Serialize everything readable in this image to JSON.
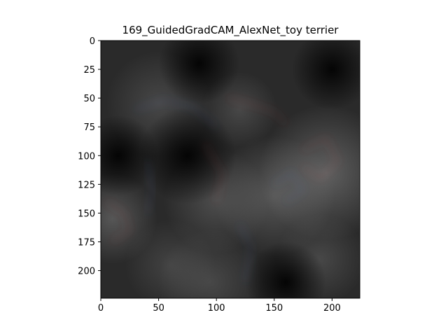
{
  "chart_data": {
    "type": "heatmap",
    "title": "169_GuidedGradCAM_AlexNet_toy terrier",
    "xlabel": "",
    "ylabel": "",
    "xlim": [
      0,
      224
    ],
    "ylim": [
      224,
      0
    ],
    "x_ticks": [
      0,
      50,
      100,
      150,
      200
    ],
    "y_ticks": [
      0,
      25,
      50,
      75,
      100,
      125,
      150,
      175,
      200
    ],
    "grid": false,
    "colors": {
      "background": "#000000",
      "highlight": "#8c8c8c",
      "accent_blue": "#5a78c8",
      "accent_red": "#c85a5a"
    },
    "bright_regions": [
      {
        "cx": 195,
        "cy": 115,
        "r": 45,
        "intensity": 0.55
      },
      {
        "cx": 150,
        "cy": 135,
        "r": 40,
        "intensity": 0.45
      },
      {
        "cx": 10,
        "cy": 155,
        "r": 30,
        "intensity": 0.45
      },
      {
        "cx": 50,
        "cy": 55,
        "r": 35,
        "intensity": 0.3
      },
      {
        "cx": 100,
        "cy": 140,
        "r": 35,
        "intensity": 0.35
      },
      {
        "cx": 190,
        "cy": 190,
        "r": 30,
        "intensity": 0.3
      },
      {
        "cx": 120,
        "cy": 60,
        "r": 25,
        "intensity": 0.3
      },
      {
        "cx": 95,
        "cy": 210,
        "r": 35,
        "intensity": 0.3
      },
      {
        "cx": 60,
        "cy": 195,
        "r": 30,
        "intensity": 0.25
      }
    ],
    "dark_regions": [
      {
        "cx": 15,
        "cy": 100,
        "r": 25
      },
      {
        "cx": 75,
        "cy": 100,
        "r": 30
      },
      {
        "cx": 160,
        "cy": 210,
        "r": 25
      },
      {
        "cx": 85,
        "cy": 20,
        "r": 25
      },
      {
        "cx": 200,
        "cy": 25,
        "r": 25
      }
    ]
  }
}
